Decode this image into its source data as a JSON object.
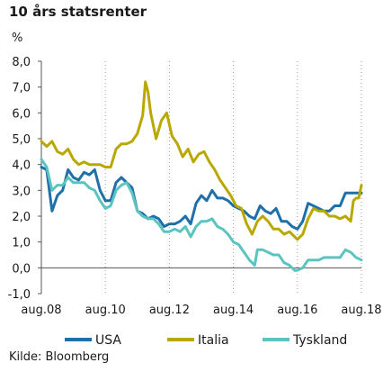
{
  "title": "10 års statsrenter",
  "unit": "%",
  "source": "Kilde: Bloomberg",
  "chart_data": {
    "type": "line",
    "title": "10 års statsrenter",
    "ylabel": "%",
    "xlabel": "",
    "ylim": [
      -1.0,
      8.0
    ],
    "yticks": [
      -1.0,
      0.0,
      1.0,
      2.0,
      3.0,
      4.0,
      5.0,
      6.0,
      7.0,
      8.0
    ],
    "ytick_labels": [
      "-1,0",
      "0,0",
      "1,0",
      "2,0",
      "3,0",
      "4,0",
      "5,0",
      "6,0",
      "7,0",
      "8,0"
    ],
    "xlim": [
      "2008-08",
      "2018-08"
    ],
    "xticks": [
      "2008-08",
      "2010-08",
      "2012-08",
      "2014-08",
      "2016-08",
      "2018-08"
    ],
    "xtick_labels": [
      "aug.08",
      "aug.10",
      "aug.12",
      "aug.14",
      "aug.16",
      "aug.18"
    ],
    "grid": "vertical dotted",
    "legend_position": "bottom",
    "series": [
      {
        "name": "USA",
        "color": "#1f6fa8",
        "points": [
          [
            "2008-08",
            3.9
          ],
          [
            "2008-10",
            3.8
          ],
          [
            "2008-12",
            2.2
          ],
          [
            "2009-02",
            2.8
          ],
          [
            "2009-04",
            3.0
          ],
          [
            "2009-06",
            3.8
          ],
          [
            "2009-08",
            3.5
          ],
          [
            "2009-10",
            3.4
          ],
          [
            "2009-12",
            3.7
          ],
          [
            "2010-02",
            3.6
          ],
          [
            "2010-04",
            3.8
          ],
          [
            "2010-06",
            3.0
          ],
          [
            "2010-08",
            2.6
          ],
          [
            "2010-10",
            2.6
          ],
          [
            "2010-12",
            3.3
          ],
          [
            "2011-02",
            3.5
          ],
          [
            "2011-04",
            3.3
          ],
          [
            "2011-06",
            3.1
          ],
          [
            "2011-08",
            2.2
          ],
          [
            "2011-10",
            2.1
          ],
          [
            "2011-12",
            1.9
          ],
          [
            "2012-02",
            2.0
          ],
          [
            "2012-04",
            1.9
          ],
          [
            "2012-06",
            1.6
          ],
          [
            "2012-08",
            1.7
          ],
          [
            "2012-10",
            1.7
          ],
          [
            "2012-12",
            1.8
          ],
          [
            "2013-02",
            2.0
          ],
          [
            "2013-04",
            1.7
          ],
          [
            "2013-06",
            2.5
          ],
          [
            "2013-08",
            2.8
          ],
          [
            "2013-10",
            2.6
          ],
          [
            "2013-12",
            3.0
          ],
          [
            "2014-02",
            2.7
          ],
          [
            "2014-04",
            2.7
          ],
          [
            "2014-06",
            2.6
          ],
          [
            "2014-08",
            2.4
          ],
          [
            "2014-10",
            2.3
          ],
          [
            "2014-12",
            2.2
          ],
          [
            "2015-02",
            2.0
          ],
          [
            "2015-04",
            1.9
          ],
          [
            "2015-06",
            2.4
          ],
          [
            "2015-08",
            2.2
          ],
          [
            "2015-10",
            2.1
          ],
          [
            "2015-12",
            2.3
          ],
          [
            "2016-02",
            1.8
          ],
          [
            "2016-04",
            1.8
          ],
          [
            "2016-06",
            1.6
          ],
          [
            "2016-08",
            1.5
          ],
          [
            "2016-10",
            1.8
          ],
          [
            "2016-12",
            2.5
          ],
          [
            "2017-02",
            2.4
          ],
          [
            "2017-04",
            2.3
          ],
          [
            "2017-06",
            2.2
          ],
          [
            "2017-08",
            2.2
          ],
          [
            "2017-10",
            2.4
          ],
          [
            "2017-12",
            2.4
          ],
          [
            "2018-02",
            2.9
          ],
          [
            "2018-04",
            2.9
          ],
          [
            "2018-06",
            2.9
          ],
          [
            "2018-08",
            2.9
          ]
        ]
      },
      {
        "name": "Italia",
        "color": "#b8a800",
        "points": [
          [
            "2008-08",
            4.9
          ],
          [
            "2008-10",
            4.7
          ],
          [
            "2008-12",
            4.9
          ],
          [
            "2009-02",
            4.5
          ],
          [
            "2009-04",
            4.4
          ],
          [
            "2009-06",
            4.6
          ],
          [
            "2009-08",
            4.2
          ],
          [
            "2009-10",
            4.0
          ],
          [
            "2009-12",
            4.1
          ],
          [
            "2010-02",
            4.0
          ],
          [
            "2010-04",
            4.0
          ],
          [
            "2010-06",
            4.0
          ],
          [
            "2010-08",
            3.9
          ],
          [
            "2010-10",
            3.9
          ],
          [
            "2010-12",
            4.6
          ],
          [
            "2011-02",
            4.8
          ],
          [
            "2011-04",
            4.8
          ],
          [
            "2011-06",
            4.9
          ],
          [
            "2011-08",
            5.2
          ],
          [
            "2011-10",
            5.9
          ],
          [
            "2011-11",
            7.2
          ],
          [
            "2011-12",
            6.8
          ],
          [
            "2012-01",
            6.0
          ],
          [
            "2012-03",
            5.0
          ],
          [
            "2012-05",
            5.7
          ],
          [
            "2012-07",
            6.0
          ],
          [
            "2012-09",
            5.1
          ],
          [
            "2012-11",
            4.8
          ],
          [
            "2013-01",
            4.3
          ],
          [
            "2013-03",
            4.6
          ],
          [
            "2013-05",
            4.1
          ],
          [
            "2013-07",
            4.4
          ],
          [
            "2013-09",
            4.5
          ],
          [
            "2013-11",
            4.1
          ],
          [
            "2014-01",
            3.8
          ],
          [
            "2014-03",
            3.4
          ],
          [
            "2014-05",
            3.1
          ],
          [
            "2014-07",
            2.8
          ],
          [
            "2014-09",
            2.4
          ],
          [
            "2014-11",
            2.3
          ],
          [
            "2015-01",
            1.7
          ],
          [
            "2015-03",
            1.3
          ],
          [
            "2015-05",
            1.8
          ],
          [
            "2015-07",
            2.0
          ],
          [
            "2015-09",
            1.8
          ],
          [
            "2015-11",
            1.5
          ],
          [
            "2016-01",
            1.5
          ],
          [
            "2016-03",
            1.3
          ],
          [
            "2016-05",
            1.4
          ],
          [
            "2016-07",
            1.2
          ],
          [
            "2016-08",
            1.1
          ],
          [
            "2016-10",
            1.3
          ],
          [
            "2016-12",
            1.9
          ],
          [
            "2017-02",
            2.3
          ],
          [
            "2017-04",
            2.2
          ],
          [
            "2017-06",
            2.2
          ],
          [
            "2017-08",
            2.0
          ],
          [
            "2017-10",
            2.0
          ],
          [
            "2017-12",
            1.9
          ],
          [
            "2018-02",
            2.0
          ],
          [
            "2018-04",
            1.8
          ],
          [
            "2018-05",
            2.6
          ],
          [
            "2018-06",
            2.7
          ],
          [
            "2018-07",
            2.7
          ],
          [
            "2018-08",
            3.2
          ]
        ]
      },
      {
        "name": "Tyskland",
        "color": "#5cc4c0",
        "points": [
          [
            "2008-08",
            4.2
          ],
          [
            "2008-10",
            3.9
          ],
          [
            "2008-12",
            3.0
          ],
          [
            "2009-02",
            3.2
          ],
          [
            "2009-04",
            3.2
          ],
          [
            "2009-06",
            3.5
          ],
          [
            "2009-08",
            3.3
          ],
          [
            "2009-10",
            3.3
          ],
          [
            "2009-12",
            3.3
          ],
          [
            "2010-02",
            3.1
          ],
          [
            "2010-04",
            3.0
          ],
          [
            "2010-06",
            2.6
          ],
          [
            "2010-08",
            2.3
          ],
          [
            "2010-10",
            2.4
          ],
          [
            "2010-12",
            3.0
          ],
          [
            "2011-02",
            3.2
          ],
          [
            "2011-04",
            3.3
          ],
          [
            "2011-06",
            2.9
          ],
          [
            "2011-08",
            2.2
          ],
          [
            "2011-10",
            2.0
          ],
          [
            "2011-12",
            1.9
          ],
          [
            "2012-02",
            1.9
          ],
          [
            "2012-04",
            1.7
          ],
          [
            "2012-06",
            1.4
          ],
          [
            "2012-08",
            1.4
          ],
          [
            "2012-10",
            1.5
          ],
          [
            "2012-12",
            1.4
          ],
          [
            "2013-02",
            1.6
          ],
          [
            "2013-04",
            1.2
          ],
          [
            "2013-06",
            1.6
          ],
          [
            "2013-08",
            1.8
          ],
          [
            "2013-10",
            1.8
          ],
          [
            "2013-12",
            1.9
          ],
          [
            "2014-02",
            1.6
          ],
          [
            "2014-04",
            1.5
          ],
          [
            "2014-06",
            1.3
          ],
          [
            "2014-08",
            1.0
          ],
          [
            "2014-10",
            0.9
          ],
          [
            "2014-12",
            0.6
          ],
          [
            "2015-02",
            0.3
          ],
          [
            "2015-04",
            0.1
          ],
          [
            "2015-05",
            0.7
          ],
          [
            "2015-07",
            0.7
          ],
          [
            "2015-09",
            0.6
          ],
          [
            "2015-11",
            0.5
          ],
          [
            "2016-01",
            0.5
          ],
          [
            "2016-03",
            0.2
          ],
          [
            "2016-05",
            0.1
          ],
          [
            "2016-07",
            -0.1
          ],
          [
            "2016-08",
            -0.1
          ],
          [
            "2016-10",
            0.0
          ],
          [
            "2016-12",
            0.3
          ],
          [
            "2017-02",
            0.3
          ],
          [
            "2017-04",
            0.3
          ],
          [
            "2017-06",
            0.4
          ],
          [
            "2017-08",
            0.4
          ],
          [
            "2017-10",
            0.4
          ],
          [
            "2017-12",
            0.4
          ],
          [
            "2018-02",
            0.7
          ],
          [
            "2018-04",
            0.6
          ],
          [
            "2018-06",
            0.4
          ],
          [
            "2018-08",
            0.3
          ]
        ]
      }
    ]
  }
}
